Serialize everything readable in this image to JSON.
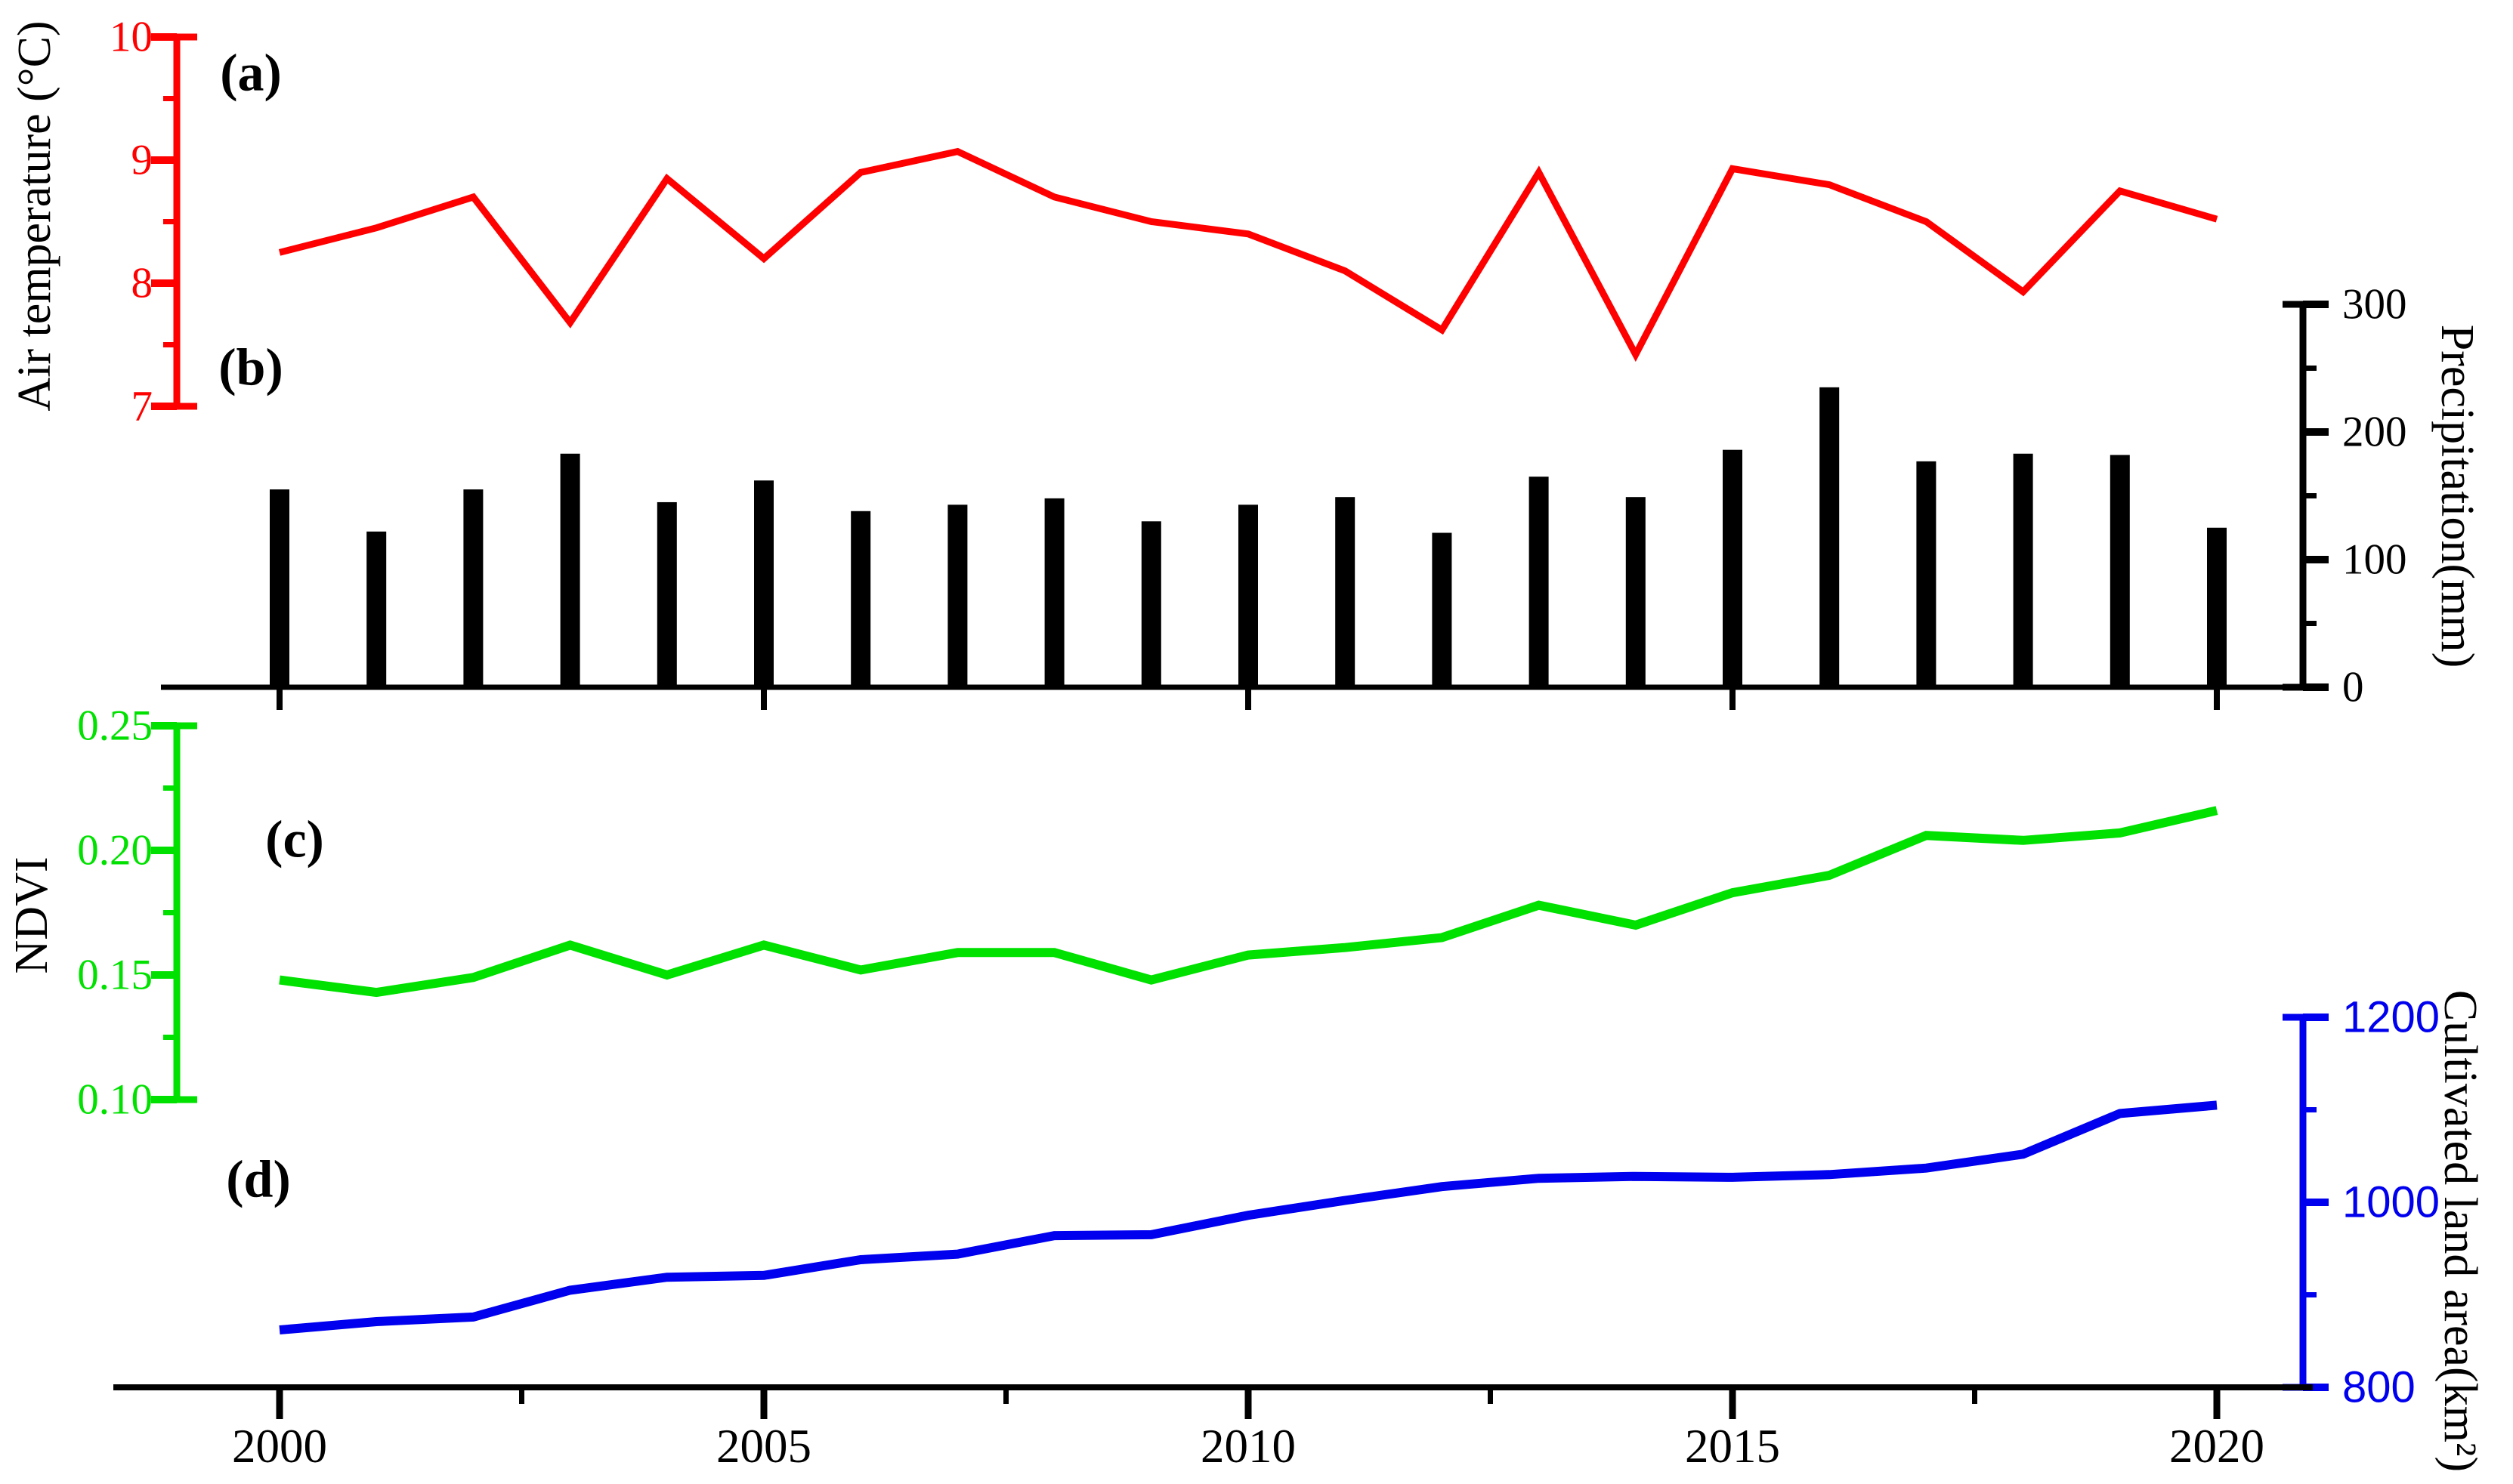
{
  "figure": {
    "background": "#ffffff"
  },
  "x_axis": {
    "years": [
      2000,
      2001,
      2002,
      2003,
      2004,
      2005,
      2006,
      2007,
      2008,
      2009,
      2010,
      2011,
      2012,
      2013,
      2014,
      2015,
      2016,
      2017,
      2018,
      2019,
      2020
    ],
    "range": [
      2000,
      2020
    ],
    "tick_years": [
      2000,
      2005,
      2010,
      2015,
      2020
    ],
    "tick_labels": [
      "2000",
      "2005",
      "2010",
      "2015",
      "2020"
    ],
    "minor_tick_years": [
      2002.5,
      2007.5,
      2012.5,
      2017.5
    ]
  },
  "chart_data": [
    {
      "panel_label": "(a)",
      "type": "line",
      "series": "Air temperature",
      "color": "#ff0000",
      "ylabel": "Air temperature (°C)",
      "axis_side": "left",
      "ylim": [
        7,
        10
      ],
      "yticks": [
        7,
        8,
        9,
        10
      ],
      "ytick_labels": [
        "7",
        "8",
        "9",
        "10"
      ],
      "minor_yticks": [
        7.5,
        8.5,
        9.5
      ],
      "values": [
        8.25,
        8.45,
        8.7,
        7.68,
        8.85,
        8.2,
        8.9,
        9.07,
        8.7,
        8.5,
        8.4,
        8.1,
        7.62,
        8.9,
        7.42,
        8.93,
        8.8,
        8.5,
        7.93,
        8.75,
        8.52
      ]
    },
    {
      "panel_label": "(b)",
      "type": "bar",
      "series": "Precipitation",
      "color": "#000000",
      "ylabel": "Precipitation(mm)",
      "axis_side": "right",
      "ylim": [
        0,
        300
      ],
      "yticks": [
        0,
        100,
        200,
        300
      ],
      "ytick_labels": [
        "0",
        "100",
        "200",
        "300"
      ],
      "minor_yticks": [
        50,
        150,
        250
      ],
      "values": [
        155,
        122,
        155,
        183,
        145,
        162,
        138,
        143,
        148,
        130,
        143,
        149,
        121,
        165,
        149,
        186,
        235,
        177,
        183,
        182,
        125
      ]
    },
    {
      "panel_label": "(c)",
      "type": "line",
      "series": "NDVI",
      "color": "#00e100",
      "ylabel": "NDVI",
      "axis_side": "left",
      "ylim": [
        0.1,
        0.25
      ],
      "yticks": [
        0.1,
        0.15,
        0.2,
        0.25
      ],
      "ytick_labels": [
        "0.10",
        "0.15",
        "0.20",
        "0.25"
      ],
      "minor_yticks": [
        0.125,
        0.175,
        0.225
      ],
      "values": [
        0.148,
        0.143,
        0.149,
        0.162,
        0.15,
        0.162,
        0.152,
        0.159,
        0.159,
        0.148,
        0.158,
        0.161,
        0.165,
        0.178,
        0.17,
        0.183,
        0.19,
        0.206,
        0.204,
        0.207,
        0.216
      ]
    },
    {
      "panel_label": "(d)",
      "type": "line",
      "series": "Cultivated land area",
      "color": "#0000ee",
      "ylabel": "Cultivated land area(km²)",
      "axis_side": "right",
      "ylim": [
        800,
        1200
      ],
      "yticks": [
        800,
        1000,
        1200
      ],
      "ytick_labels": [
        "800",
        "1000",
        "1200"
      ],
      "minor_yticks": [
        900,
        1100
      ],
      "values": [
        862,
        871,
        876,
        905,
        919,
        921,
        938,
        944,
        964,
        965,
        986,
        1002,
        1017,
        1026,
        1028,
        1027,
        1030,
        1037,
        1052,
        1096,
        1105
      ]
    }
  ]
}
